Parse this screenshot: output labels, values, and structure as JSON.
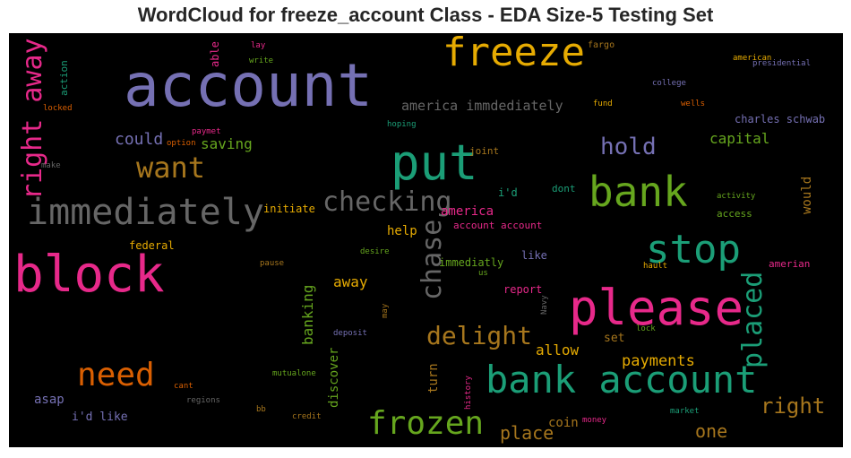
{
  "title": "WordCloud for freeze_account Class - EDA Size-5 Testing Set",
  "colors": {
    "purple": "#7570b3",
    "green": "#1b9e77",
    "pink": "#e7298a",
    "lime": "#66a61e",
    "gold": "#e6ab02",
    "gray": "#666666",
    "brown": "#a6761d",
    "orange": "#d95f02"
  },
  "words": {
    "account": "account",
    "freeze": "freeze",
    "put": "put",
    "bank": "bank",
    "immediately": "immediately",
    "block": "block",
    "stop": "stop",
    "please": "please",
    "bank_account": "bank account",
    "frozen": "frozen",
    "need": "need",
    "want": "want",
    "checking": "checking",
    "hold": "hold",
    "delight": "delight",
    "right_away": "right away",
    "chase": "chase",
    "placed": "placed",
    "could": "could",
    "saving": "saving",
    "capital": "capital",
    "america_immdediately": "america immdediately",
    "charles_schwab": "charles schwab",
    "america": "america",
    "account_account": "account account",
    "help": "help",
    "initiate": "initiate",
    "federal": "federal",
    "away": "away",
    "banking": "banking",
    "discover": "discover",
    "turn": "turn",
    "place": "place",
    "one": "one",
    "right": "right",
    "payments": "payments",
    "allow": "allow",
    "set": "set",
    "coin": "coin",
    "report": "report",
    "immediatly": "immediatly",
    "like": "like",
    "i_d": "i'd",
    "dont": "dont",
    "joint": "joint",
    "would": "would",
    "access": "access",
    "activity": "activity",
    "amerian": "amerian",
    "hault": "hault",
    "asap": "asap",
    "i_d_like": "i'd like",
    "regions": "regions",
    "bb": "bb",
    "credit": "credit",
    "cant": "cant",
    "mutualone": "mutualone",
    "deposit": "deposit",
    "may": "may",
    "pause": "pause",
    "desire": "desire",
    "us": "us",
    "navy": "Navy",
    "lock": "lock",
    "market": "market",
    "money": "money",
    "history": "history",
    "able": "able",
    "lay": "lay",
    "write": "write",
    "action": "action",
    "locked": "locked",
    "make": "make",
    "paymet": "paymet",
    "option": "option",
    "hoping": "hoping",
    "fargo": "fargo",
    "american": "american",
    "presidential": "presidential",
    "college": "college",
    "fund": "fund",
    "wells": "wells"
  }
}
